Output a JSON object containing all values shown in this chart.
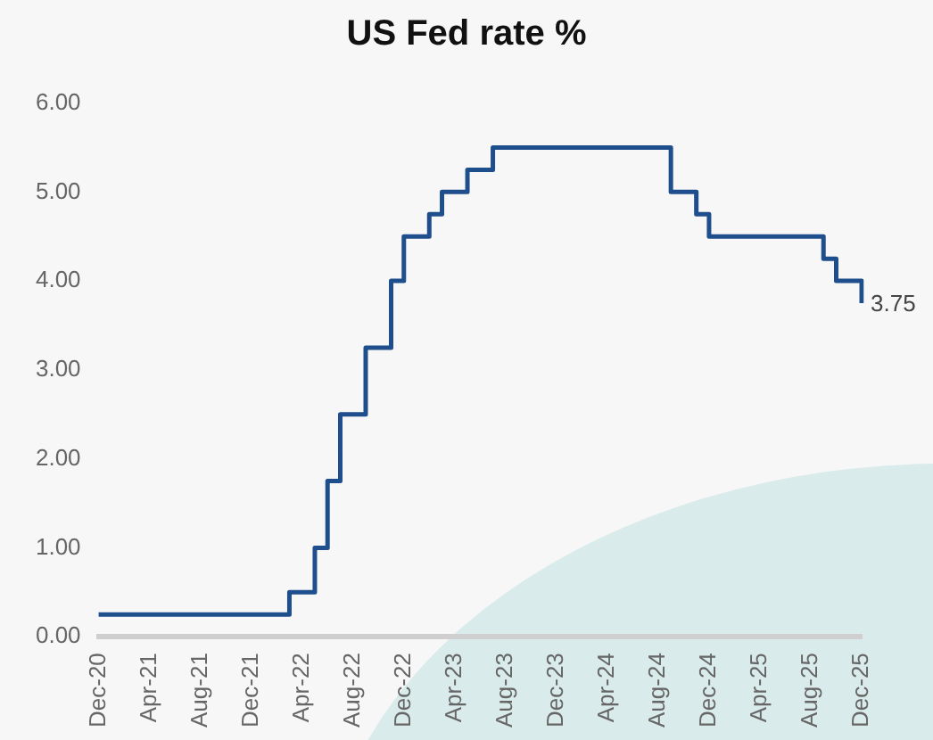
{
  "chart_data": {
    "type": "step",
    "title": "US Fed rate %",
    "categories": [
      "Dec-20",
      null,
      null,
      null,
      "Apr-21",
      null,
      null,
      null,
      "Aug-21",
      null,
      null,
      null,
      "Dec-21",
      null,
      null,
      null,
      "Apr-22",
      null,
      null,
      null,
      "Aug-22",
      null,
      null,
      null,
      "Dec-22",
      null,
      null,
      null,
      "Apr-23",
      null,
      null,
      null,
      "Aug-23",
      null,
      null,
      null,
      "Dec-23",
      null,
      null,
      null,
      "Apr-24",
      null,
      null,
      null,
      "Aug-24",
      null,
      null,
      null,
      "Dec-24",
      null,
      null,
      null,
      "Apr-25",
      null,
      null,
      null,
      "Aug-25",
      null,
      null,
      null,
      "Dec-25"
    ],
    "series": [
      {
        "color": "#1f4e8c",
        "values": [
          0.25,
          0.25,
          0.25,
          0.25,
          0.25,
          0.25,
          0.25,
          0.25,
          0.25,
          0.25,
          0.25,
          0.25,
          0.25,
          0.25,
          0.25,
          0.5,
          0.5,
          1.0,
          1.75,
          2.5,
          2.5,
          3.25,
          3.25,
          4.0,
          4.5,
          4.5,
          4.75,
          5.0,
          5.0,
          5.25,
          5.25,
          5.5,
          5.5,
          5.5,
          5.5,
          5.5,
          5.5,
          5.5,
          5.5,
          5.5,
          5.5,
          5.5,
          5.5,
          5.5,
          5.5,
          5.0,
          5.0,
          4.75,
          4.5,
          4.5,
          4.5,
          4.5,
          4.5,
          4.5,
          4.5,
          4.5,
          4.5,
          4.25,
          4.0,
          4.0,
          3.75
        ],
        "value_labels": [
          null,
          null,
          null,
          null,
          null,
          null,
          null,
          null,
          null,
          null,
          null,
          null,
          null,
          null,
          null,
          null,
          null,
          null,
          null,
          null,
          null,
          null,
          null,
          null,
          null,
          null,
          null,
          null,
          null,
          null,
          null,
          null,
          null,
          null,
          null,
          null,
          null,
          null,
          null,
          null,
          null,
          null,
          null,
          null,
          null,
          null,
          null,
          null,
          null,
          null,
          null,
          null,
          null,
          null,
          null,
          null,
          null,
          null,
          null,
          null,
          "3.75"
        ]
      }
    ],
    "ylim": [
      0,
      6
    ],
    "yticks": [
      {
        "value": 0,
        "label": "0.00"
      },
      {
        "value": 1,
        "label": "1.00"
      },
      {
        "value": 2,
        "label": "2.00"
      },
      {
        "value": 3,
        "label": "3.00"
      },
      {
        "value": 4,
        "label": "4.00"
      },
      {
        "value": 5,
        "label": "5.00"
      },
      {
        "value": 6,
        "label": "6.00"
      }
    ],
    "grid": false,
    "legend": false,
    "marker": "none",
    "line_style": "solid"
  }
}
